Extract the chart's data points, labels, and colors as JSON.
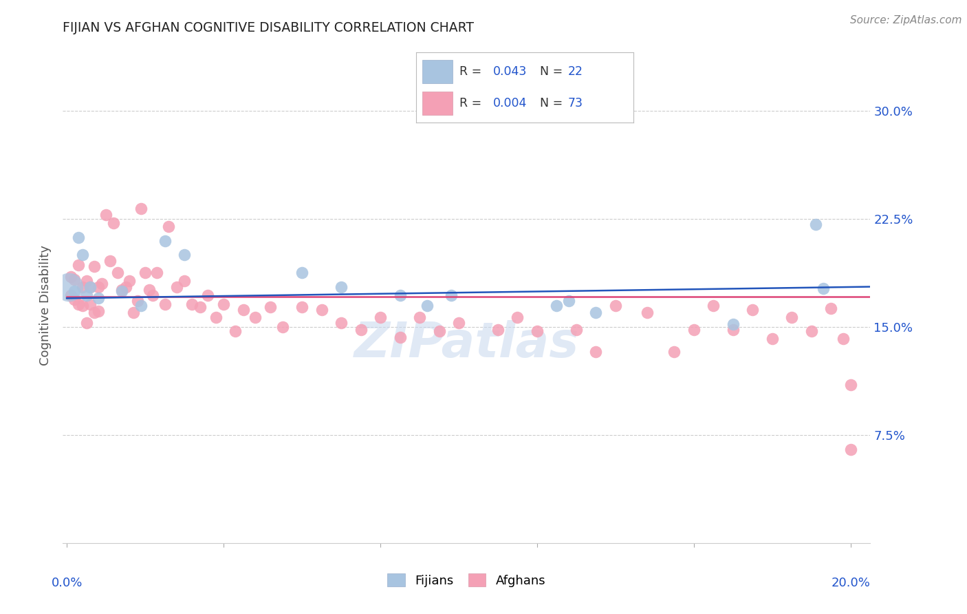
{
  "title": "FIJIAN VS AFGHAN COGNITIVE DISABILITY CORRELATION CHART",
  "source": "Source: ZipAtlas.com",
  "ylabel": "Cognitive Disability",
  "yticks": [
    0.075,
    0.15,
    0.225,
    0.3
  ],
  "ytick_labels": [
    "7.5%",
    "15.0%",
    "22.5%",
    "30.0%"
  ],
  "xlim": [
    -0.001,
    0.205
  ],
  "ylim": [
    0.0,
    0.33
  ],
  "fijians_R": 0.043,
  "fijians_N": 22,
  "afghans_R": 0.004,
  "afghans_N": 73,
  "fijian_color": "#a8c4e0",
  "afghan_color": "#f4a0b5",
  "fijian_line_color": "#2255bb",
  "afghan_line_color": "#dd4477",
  "background_color": "#ffffff",
  "legend_box_color": "#cccccc",
  "fijians_x": [
    0.0005,
    0.002,
    0.003,
    0.004,
    0.005,
    0.006,
    0.008,
    0.014,
    0.019,
    0.025,
    0.03,
    0.06,
    0.07,
    0.085,
    0.092,
    0.098,
    0.125,
    0.128,
    0.135,
    0.17,
    0.191,
    0.193
  ],
  "fijians_y": [
    0.178,
    0.175,
    0.212,
    0.2,
    0.172,
    0.178,
    0.17,
    0.175,
    0.165,
    0.21,
    0.2,
    0.188,
    0.178,
    0.172,
    0.165,
    0.172,
    0.165,
    0.168,
    0.16,
    0.152,
    0.221,
    0.177
  ],
  "afghans_x": [
    0.001,
    0.001,
    0.002,
    0.002,
    0.003,
    0.003,
    0.004,
    0.004,
    0.005,
    0.005,
    0.006,
    0.006,
    0.007,
    0.007,
    0.008,
    0.008,
    0.009,
    0.01,
    0.011,
    0.012,
    0.013,
    0.014,
    0.015,
    0.016,
    0.017,
    0.018,
    0.019,
    0.02,
    0.021,
    0.022,
    0.023,
    0.025,
    0.026,
    0.028,
    0.03,
    0.032,
    0.034,
    0.036,
    0.038,
    0.04,
    0.043,
    0.045,
    0.048,
    0.052,
    0.055,
    0.06,
    0.065,
    0.07,
    0.075,
    0.08,
    0.085,
    0.09,
    0.095,
    0.1,
    0.11,
    0.115,
    0.12,
    0.13,
    0.135,
    0.14,
    0.148,
    0.155,
    0.16,
    0.165,
    0.17,
    0.175,
    0.18,
    0.185,
    0.19,
    0.195,
    0.198,
    0.2,
    0.2
  ],
  "afghans_y": [
    0.185,
    0.172,
    0.183,
    0.169,
    0.193,
    0.166,
    0.178,
    0.165,
    0.182,
    0.153,
    0.178,
    0.166,
    0.192,
    0.16,
    0.178,
    0.161,
    0.18,
    0.228,
    0.196,
    0.222,
    0.188,
    0.176,
    0.178,
    0.182,
    0.16,
    0.168,
    0.232,
    0.188,
    0.176,
    0.172,
    0.188,
    0.166,
    0.22,
    0.178,
    0.182,
    0.166,
    0.164,
    0.172,
    0.157,
    0.166,
    0.147,
    0.162,
    0.157,
    0.164,
    0.15,
    0.164,
    0.162,
    0.153,
    0.148,
    0.157,
    0.143,
    0.157,
    0.147,
    0.153,
    0.148,
    0.157,
    0.147,
    0.148,
    0.133,
    0.165,
    0.16,
    0.133,
    0.148,
    0.165,
    0.148,
    0.162,
    0.142,
    0.157,
    0.147,
    0.163,
    0.142,
    0.11,
    0.065
  ]
}
